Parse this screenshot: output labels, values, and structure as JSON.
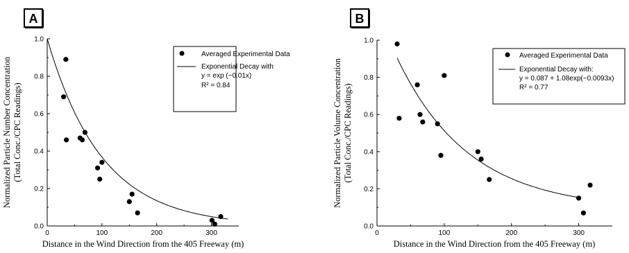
{
  "chart_data": [
    {
      "panel_label": "A",
      "type": "scatter",
      "xlabel": "Distance in the Wind Direction from the 405 Freeway (m)",
      "ylabel_lines": [
        "Normalized Particle Number Concentration",
        "(Total Conc./CPC Readings)"
      ],
      "xlim": [
        0,
        350
      ],
      "ylim": [
        0,
        1.0
      ],
      "xticks": [
        "0",
        "100",
        "200",
        "300"
      ],
      "yticks": [
        "0.0",
        "0.2",
        "0.4",
        "0.6",
        "0.8",
        "1.0"
      ],
      "legend": {
        "placement": "top-right",
        "points_label": "Averaged Experimental Data",
        "fit_lines": [
          "Exponential Decay with",
          "y = exp (−0.01x)",
          "R² = 0.84"
        ]
      },
      "points": [
        {
          "x": 30,
          "y": 0.69
        },
        {
          "x": 34,
          "y": 0.89
        },
        {
          "x": 35,
          "y": 0.46
        },
        {
          "x": 60,
          "y": 0.47
        },
        {
          "x": 64,
          "y": 0.46
        },
        {
          "x": 69,
          "y": 0.5
        },
        {
          "x": 92,
          "y": 0.31
        },
        {
          "x": 96,
          "y": 0.25
        },
        {
          "x": 100,
          "y": 0.34
        },
        {
          "x": 150,
          "y": 0.13
        },
        {
          "x": 155,
          "y": 0.17
        },
        {
          "x": 165,
          "y": 0.07
        },
        {
          "x": 301,
          "y": 0.03
        },
        {
          "x": 306,
          "y": 0.01
        },
        {
          "x": 317,
          "y": 0.05
        }
      ],
      "fit": {
        "a": 0,
        "b": 1,
        "k": -0.01,
        "x_from": 0,
        "x_to": 330
      }
    },
    {
      "panel_label": "B",
      "type": "scatter",
      "xlabel": "Distance in the Wind Direction from the 405 Freeway (m)",
      "ylabel_lines": [
        "Normalized Particle Volume Concentration",
        "(Total Conc./CPC Readings)"
      ],
      "xlim": [
        0,
        350
      ],
      "ylim": [
        0,
        1.0
      ],
      "xticks": [
        "0",
        "100",
        "200",
        "300"
      ],
      "yticks": [
        "0.0",
        "0.2",
        "0.4",
        "0.6",
        "0.8",
        "1.0"
      ],
      "legend": {
        "placement": "top-right",
        "points_label": "Averaged Experimental Data",
        "fit_lines": [
          "Exponential Decay with:",
          "y = 0.087 + 1.08exp(−0.0093x)",
          "R² = 0.77"
        ]
      },
      "points": [
        {
          "x": 30,
          "y": 0.98
        },
        {
          "x": 33,
          "y": 0.58
        },
        {
          "x": 60,
          "y": 0.76
        },
        {
          "x": 64,
          "y": 0.6
        },
        {
          "x": 68,
          "y": 0.56
        },
        {
          "x": 90,
          "y": 0.55
        },
        {
          "x": 95,
          "y": 0.38
        },
        {
          "x": 100,
          "y": 0.81
        },
        {
          "x": 150,
          "y": 0.4
        },
        {
          "x": 155,
          "y": 0.36
        },
        {
          "x": 167,
          "y": 0.25
        },
        {
          "x": 300,
          "y": 0.15
        },
        {
          "x": 307,
          "y": 0.07
        },
        {
          "x": 317,
          "y": 0.22
        }
      ],
      "fit": {
        "a": 0.087,
        "b": 1.08,
        "k": -0.0093,
        "x_from": 30,
        "x_to": 300
      }
    }
  ]
}
